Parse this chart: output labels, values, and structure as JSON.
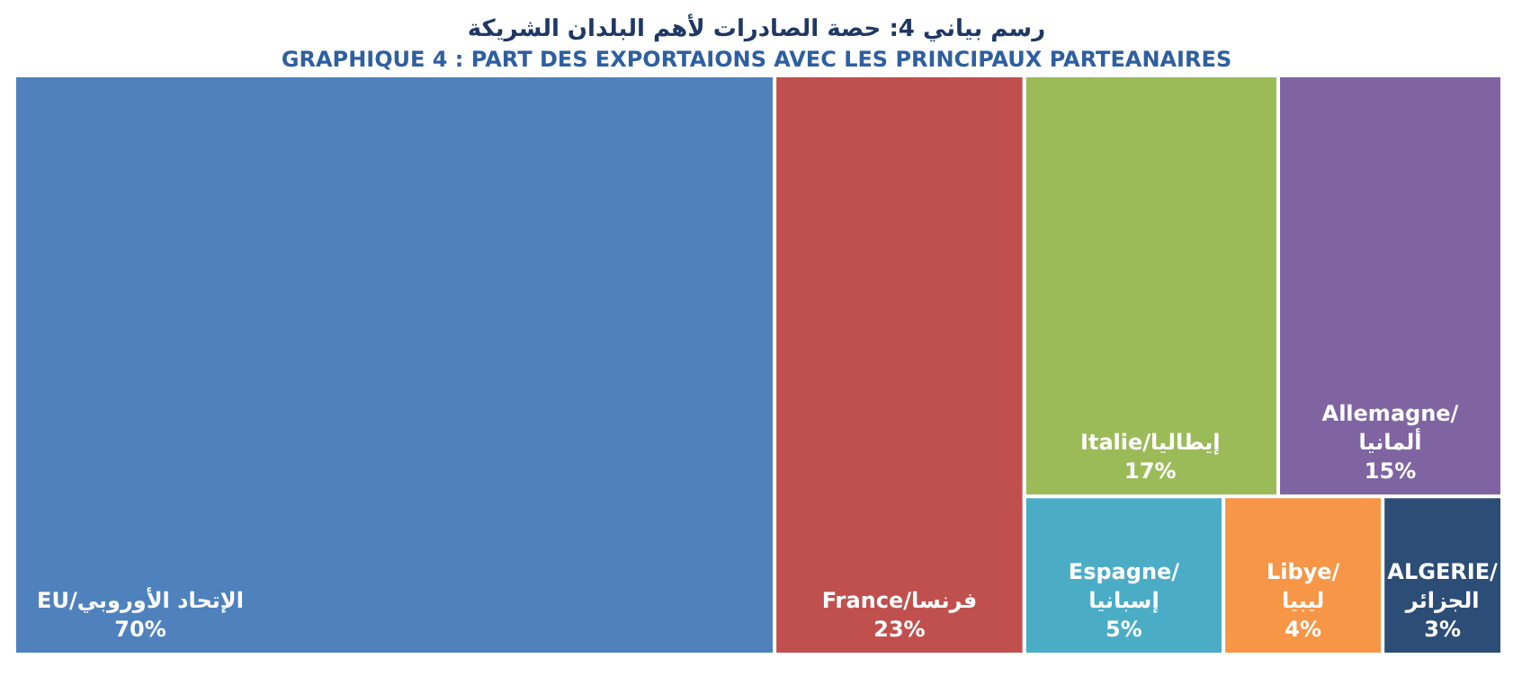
{
  "chart_data": {
    "type": "other",
    "title": "رسم بياني 4: حصة الصادرات لأهم البلدان  الشريكة",
    "subtitle": "GRAPHIQUE 4 : PART DES EXPORTAIONS AVEC LES PRINCIPAUX PARTEANAIRES",
    "categories": [
      "EU/الإتحاد الأوروبي",
      "France/فرنسا",
      "Italie/إيطاليا",
      "Allemagne/ ألمانيا",
      "Espagne/إسبانيا",
      "Libye/ليبيا",
      "ALGERIE/ الجزائر"
    ],
    "values": [
      70,
      23,
      17,
      15,
      5,
      4,
      3
    ],
    "value_labels": [
      "70%",
      "23%",
      "17%",
      "15%",
      "5%",
      "4%",
      "3%"
    ],
    "colors": [
      "#4f81bd",
      "#c0504d",
      "#9bbb59",
      "#8064a2",
      "#4bacc6",
      "#f79646",
      "#2c4d75"
    ]
  }
}
